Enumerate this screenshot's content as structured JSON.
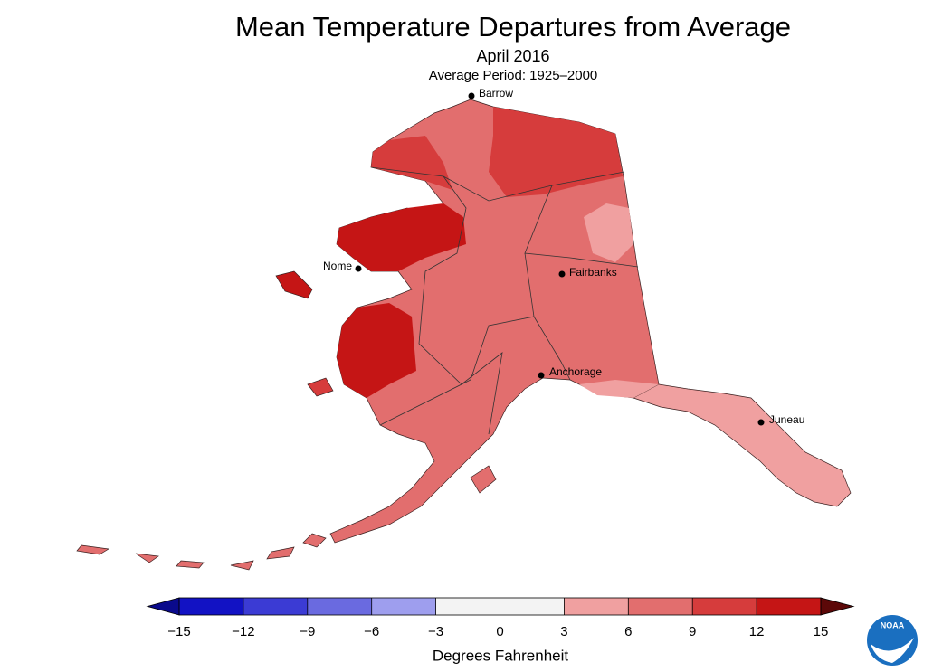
{
  "header": {
    "title": "Mean Temperature Departures from Average",
    "subtitle": "April 2016",
    "period": "Average Period: 1925–2000"
  },
  "cities": [
    "Barrow",
    "Nome",
    "Fairbanks",
    "Anchorage",
    "Juneau"
  ],
  "legend": {
    "label": "Degrees Fahrenheit",
    "range": [
      -15,
      15
    ],
    "ticks": [
      {
        "value": -15,
        "label": "−15"
      },
      {
        "value": -12,
        "label": "−12"
      },
      {
        "value": -9,
        "label": "−9"
      },
      {
        "value": -6,
        "label": "−6"
      },
      {
        "value": -3,
        "label": "−3"
      },
      0,
      3,
      6,
      9,
      12,
      15
    ],
    "colors": [
      "#1212c4",
      "#3b3bd4",
      "#6a6ae0",
      "#9e9eee",
      "#f3f3f3",
      "#f3f3f3",
      "#f0a0a0",
      "#e26e6e",
      "#d63c3c",
      "#c51515"
    ],
    "low_color": "#0a0a8c",
    "high_color": "#5c0808"
  },
  "logo": "NOAA"
}
